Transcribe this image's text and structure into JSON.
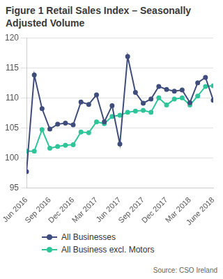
{
  "chart_data": {
    "type": "line",
    "title": "Figure 1 Retail Sales Index – Seasonally Adjusted Volume",
    "source": "Source: CSO Ireland",
    "categories": [
      "Jun 2016",
      null,
      null,
      "Sep 2016",
      null,
      null,
      "Dec 2016",
      null,
      null,
      "Mar 2017",
      null,
      null,
      "Jun 2017",
      null,
      null,
      "Sep 2017",
      null,
      null,
      "Dec 2017",
      null,
      null,
      "Mar 2018",
      null,
      null,
      "June 2018"
    ],
    "series": [
      {
        "name": "All Businesses",
        "color": "#3f4d7c",
        "marker": "circle",
        "line_style": "solid",
        "values": [
          97.7,
          113.8,
          108.2,
          104.8,
          105.6,
          105.8,
          105.5,
          109.3,
          108.9,
          110.5,
          106.0,
          108.7,
          102.3,
          116.9,
          110.9,
          109.1,
          109.8,
          111.9,
          111.4,
          111.1,
          111.3,
          109.2,
          112.5,
          113.4,
          109.6
        ]
      },
      {
        "name": "All Business excl. Motors",
        "color": "#2fc59b",
        "marker": "circle",
        "line_style": "solid",
        "values": [
          101.1,
          101.1,
          104.7,
          101.6,
          101.9,
          102.1,
          102.2,
          104.3,
          104.2,
          106.0,
          105.7,
          106.9,
          107.1,
          107.6,
          107.8,
          107.9,
          107.6,
          110.0,
          108.8,
          109.8,
          110.0,
          108.8,
          110.3,
          111.9,
          112.0
        ]
      }
    ],
    "ylim": [
      95,
      120
    ],
    "yticks": [
      95,
      100,
      105,
      110,
      115,
      120
    ],
    "grid": true,
    "legend": "bottom"
  }
}
